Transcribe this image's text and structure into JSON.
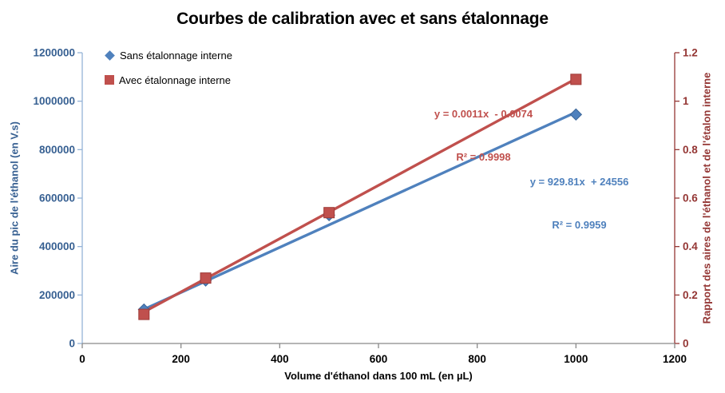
{
  "chart_data": {
    "type": "scatter",
    "title": "Courbes de calibration avec et sans étalonnage",
    "xlabel": "Volume d'éthanol dans 100 mL (en µL)",
    "ylabel_left": "Aire du pic de l'éthanol (en V.s)",
    "ylabel_right": "Rapport des aires de l'éthanol et de l'étalon interne",
    "x": [
      125,
      250,
      500,
      1000
    ],
    "series": [
      {
        "name": "Sans étalonnage interne",
        "axis": "left",
        "marker": "diamond",
        "color": "#4F81BD",
        "values": [
          140000,
          260000,
          530000,
          945000
        ],
        "trendline": {
          "slope": 929.81,
          "intercept": 24556,
          "equation_label": "y = 929.81x  + 24556",
          "r2_label": "R² = 0.9959"
        }
      },
      {
        "name": "Avec étalonnage interne",
        "axis": "right",
        "marker": "square",
        "color": "#C0504D",
        "values": [
          0.12,
          0.27,
          0.54,
          1.09
        ],
        "trendline": {
          "slope": 0.0011,
          "intercept": -0.0074,
          "equation_label": "y = 0.0011x  - 0.0074",
          "r2_label": "R² = 0.9998"
        }
      }
    ],
    "x_axis": {
      "min": 0,
      "max": 1200,
      "tick_labels": [
        "0",
        "200",
        "400",
        "600",
        "800",
        "1000",
        "1200"
      ],
      "label_color": "#000000",
      "line_color": "#898989"
    },
    "y_left_axis": {
      "min": 0,
      "max": 1200000,
      "tick_labels": [
        "0",
        "200000",
        "400000",
        "600000",
        "800000",
        "1000000",
        "1200000"
      ],
      "label_color": "#376092",
      "line_color": "#95B3D7"
    },
    "y_right_axis": {
      "min": 0,
      "max": 1.2,
      "tick_labels": [
        "0",
        "0.2",
        "0.4",
        "0.6",
        "0.8",
        "1",
        "1.2"
      ],
      "label_color": "#943634",
      "line_color": "#943634"
    },
    "legend_position": "top-left",
    "grid": false
  }
}
